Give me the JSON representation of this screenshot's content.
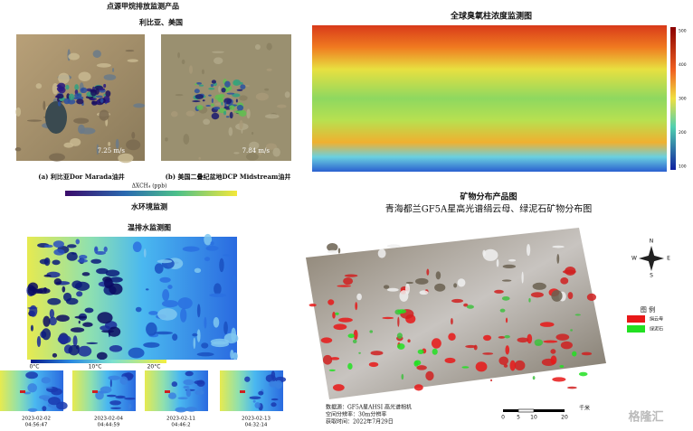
{
  "methane": {
    "title": "点源甲烷排放监测产品",
    "subtitle": "利比亚、美国",
    "panels": [
      {
        "caption": "(a) 利比亚Dor Marada油井",
        "wind": "7.25 m/s"
      },
      {
        "caption": "(b) 美国二叠纪盆地DCP Midstream油井",
        "wind": "7.84 m/s"
      }
    ],
    "colorbar_label": "ΔXCH₄ (ppb)"
  },
  "water": {
    "section": "水环境监测",
    "title": "温排水监测图",
    "colorbar_ticks": [
      "0°C",
      "10°C",
      "20°C"
    ],
    "snapshots": [
      {
        "date": "2023-02-02",
        "time": "04:56:47"
      },
      {
        "date": "2023-02-04",
        "time": "04:44:59"
      },
      {
        "date": "2023-02-11",
        "time": "04:46:2"
      },
      {
        "date": "2023-02-13",
        "time": "04:32:14"
      }
    ]
  },
  "ozone": {
    "title": "全球臭氧柱浓度监测图",
    "colorbar_ticks": [
      "500",
      "400",
      "300",
      "200",
      "100"
    ]
  },
  "mineral": {
    "title": "矿物分布产品图",
    "subtitle": "青海都兰GF5A星高光谱绢云母、绿泥石矿物分布图",
    "legend_title": "图 例",
    "legend": [
      "绢云母",
      "绿泥石"
    ],
    "compass": [
      "N",
      "S",
      "W",
      "E"
    ],
    "source": [
      "数据源：GF5A星AHSI 高光谱相机",
      "空间分辨率：30m分辨率",
      "获取时间：2022年7月29日"
    ],
    "scale": [
      "0",
      "5",
      "10",
      "20",
      "千米"
    ]
  },
  "watermark": "格隆汇"
}
